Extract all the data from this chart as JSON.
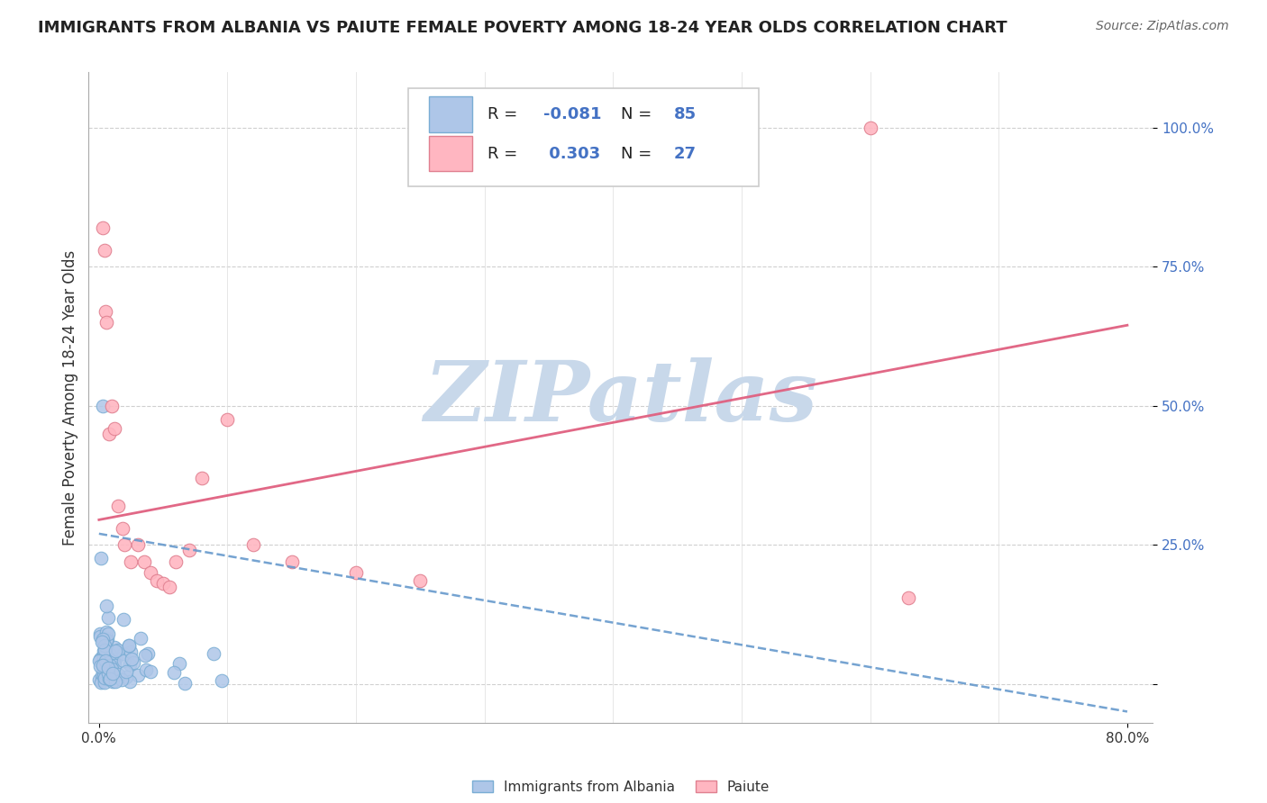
{
  "title": "IMMIGRANTS FROM ALBANIA VS PAIUTE FEMALE POVERTY AMONG 18-24 YEAR OLDS CORRELATION CHART",
  "source": "Source: ZipAtlas.com",
  "ylabel": "Female Poverty Among 18-24 Year Olds",
  "y_tick_labels": [
    "",
    "25.0%",
    "50.0%",
    "75.0%",
    "100.0%"
  ],
  "x_tick_labels": [
    "0.0%",
    "80.0%"
  ],
  "legend_box_labels": [
    "R = -0.081  N = 85",
    "R =  0.303  N = 27"
  ],
  "legend_bottom_labels": [
    "Immigrants from Albania",
    "Paiute"
  ],
  "background_color": "#ffffff",
  "grid_color": "#d0d0d0",
  "blue_dot_color": "#aec6e8",
  "blue_dot_edge": "#7aadd4",
  "pink_dot_color": "#ffb6c1",
  "pink_dot_edge": "#e08090",
  "blue_line_color": "#6699cc",
  "pink_line_color": "#e06080",
  "tick_color": "#4472c4",
  "watermark_text": "ZIPatlas",
  "watermark_color": "#c8d8ea",
  "title_fontsize": 13,
  "source_fontsize": 10,
  "ylabel_fontsize": 12,
  "tick_fontsize": 11,
  "legend_fontsize": 13
}
